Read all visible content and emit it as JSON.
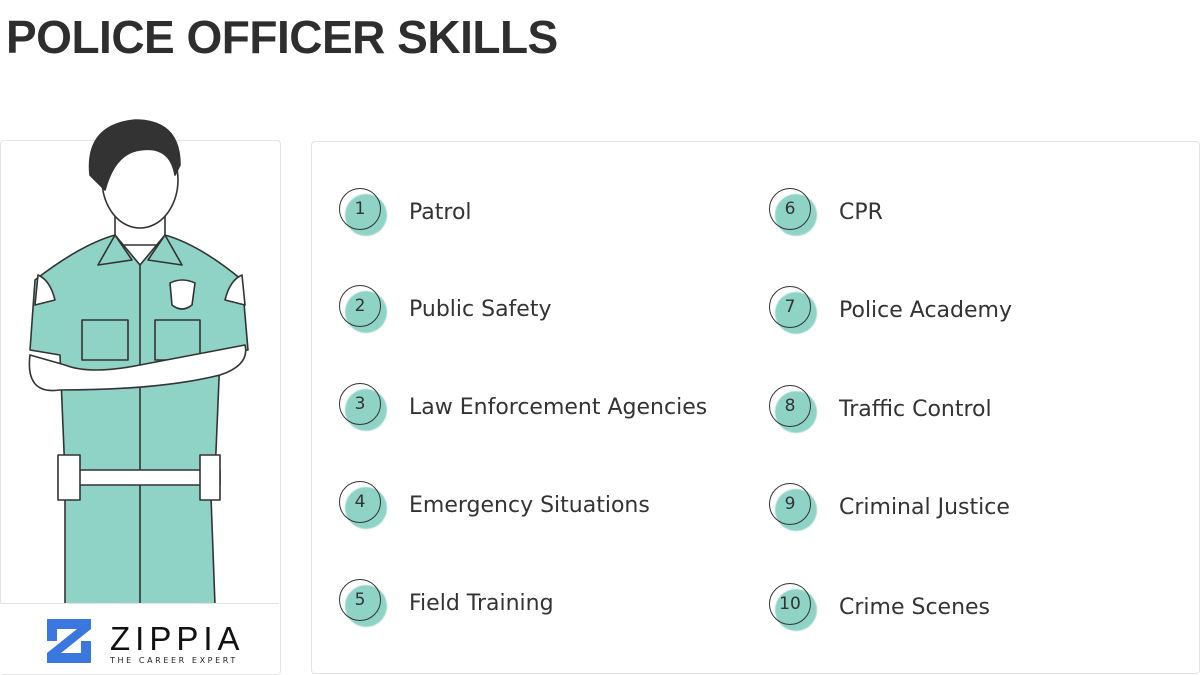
{
  "title": "POLICE OFFICER SKILLS",
  "brand": {
    "name": "ZIPPIA",
    "tagline": "THE CAREER EXPERT",
    "color": "#3a78e0"
  },
  "accent": "#8fd3c7",
  "skills": [
    {
      "n": "1",
      "label": "Patrol"
    },
    {
      "n": "2",
      "label": "Public Safety"
    },
    {
      "n": "3",
      "label": "Law Enforcement Agencies"
    },
    {
      "n": "4",
      "label": "Emergency Situations"
    },
    {
      "n": "5",
      "label": "Field Training"
    },
    {
      "n": "6",
      "label": "CPR"
    },
    {
      "n": "7",
      "label": "Police Academy"
    },
    {
      "n": "8",
      "label": "Traffic Control"
    },
    {
      "n": "9",
      "label": "Criminal Justice"
    },
    {
      "n": "10",
      "label": "Crime Scenes"
    }
  ]
}
